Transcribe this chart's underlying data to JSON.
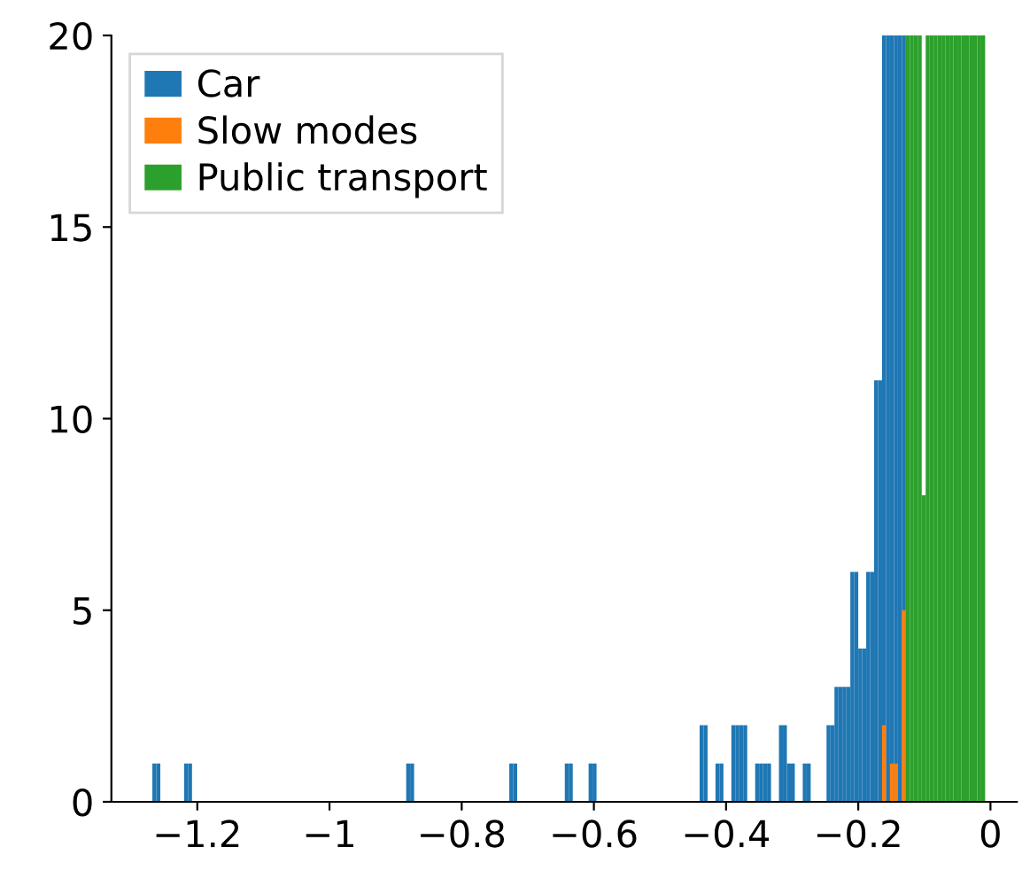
{
  "chart_data": {
    "type": "histogram",
    "legend": "top left",
    "grid": false,
    "xlim": [
      -1.33,
      0.04
    ],
    "ylim": [
      0,
      20
    ],
    "xticks": [
      {
        "value": -1.2,
        "label": "−1.2"
      },
      {
        "value": -1,
        "label": "−1"
      },
      {
        "value": -0.8,
        "label": "−0.8"
      },
      {
        "value": -0.6,
        "label": "−0.6"
      },
      {
        "value": -0.4,
        "label": "−0.4"
      },
      {
        "value": -0.2,
        "label": "−0.2"
      },
      0
    ],
    "yticks": [
      0,
      5,
      10,
      15,
      20
    ],
    "bins": [
      -1.268,
      -1.262,
      -1.256,
      -1.25,
      -1.244,
      -1.238,
      -1.232,
      -1.226,
      -1.22,
      -1.214,
      -1.208,
      -1.202,
      -1.196,
      -1.19,
      -1.184,
      -1.178,
      -1.172,
      -1.166,
      -1.16,
      -1.154,
      -1.148,
      -1.142,
      -1.136,
      -1.13,
      -1.124,
      -1.118,
      -1.112,
      -1.106,
      -1.1,
      -1.094,
      -1.088,
      -1.082,
      -1.076,
      -1.07,
      -1.064,
      -1.058,
      -1.052,
      -1.046,
      -1.04,
      -1.034,
      -1.028,
      -1.022,
      -1.016,
      -1.01,
      -1.004,
      -0.998,
      -0.992,
      -0.986,
      -0.98,
      -0.974,
      -0.968,
      -0.962,
      -0.956,
      -0.95,
      -0.944,
      -0.938,
      -0.932,
      -0.926,
      -0.92,
      -0.914,
      -0.908,
      -0.902,
      -0.896,
      -0.89,
      -0.884,
      -0.878,
      -0.872,
      -0.866,
      -0.86,
      -0.854,
      -0.848,
      -0.842,
      -0.836,
      -0.83,
      -0.824,
      -0.818,
      -0.812,
      -0.806,
      -0.8,
      -0.794,
      -0.788,
      -0.782,
      -0.776,
      -0.77,
      -0.764,
      -0.758,
      -0.752,
      -0.746,
      -0.74,
      -0.734,
      -0.728,
      -0.722,
      -0.716,
      -0.71,
      -0.704,
      -0.698,
      -0.692,
      -0.686,
      -0.68,
      -0.674,
      -0.668,
      -0.662,
      -0.656,
      -0.65,
      -0.644,
      -0.638,
      -0.632,
      -0.626,
      -0.62,
      -0.614,
      -0.608,
      -0.602,
      -0.596,
      -0.59,
      -0.584,
      -0.578,
      -0.572,
      -0.566,
      -0.56,
      -0.554,
      -0.548,
      -0.542,
      -0.536,
      -0.53,
      -0.524,
      -0.518,
      -0.512,
      -0.506,
      -0.5,
      -0.494,
      -0.488,
      -0.482,
      -0.476,
      -0.47,
      -0.464,
      -0.458,
      -0.452,
      -0.446,
      -0.44,
      -0.434,
      -0.428,
      -0.422,
      -0.416,
      -0.41,
      -0.404,
      -0.398,
      -0.392,
      -0.386,
      -0.38,
      -0.374,
      -0.368,
      -0.362,
      -0.356,
      -0.35,
      -0.344,
      -0.338,
      -0.332,
      -0.326,
      -0.32,
      -0.314,
      -0.308,
      -0.302,
      -0.296,
      -0.29,
      -0.284,
      -0.278,
      -0.272,
      -0.266,
      -0.26,
      -0.254,
      -0.248,
      -0.242,
      -0.236,
      -0.23,
      -0.224,
      -0.218,
      -0.212,
      -0.206,
      -0.2,
      -0.194,
      -0.188,
      -0.182,
      -0.176,
      -0.17,
      -0.164,
      -0.158,
      -0.152,
      -0.146,
      -0.14,
      -0.134,
      -0.128,
      -0.122,
      -0.116,
      -0.11,
      -0.104,
      -0.098,
      -0.092,
      -0.086,
      -0.08,
      -0.074,
      -0.068,
      -0.062,
      -0.056,
      -0.05,
      -0.044,
      -0.038,
      -0.032,
      -0.026,
      -0.02,
      -0.014,
      -0.008,
      -0.002
    ],
    "series": [
      {
        "name": "Car",
        "color": "#1f77b4",
        "values": [
          1,
          1,
          0,
          0,
          0,
          0,
          0,
          0,
          1,
          1,
          0,
          0,
          0,
          0,
          0,
          0,
          0,
          0,
          0,
          0,
          0,
          0,
          0,
          0,
          0,
          0,
          0,
          0,
          0,
          0,
          0,
          0,
          0,
          0,
          0,
          0,
          0,
          0,
          0,
          0,
          0,
          0,
          0,
          0,
          0,
          0,
          0,
          0,
          0,
          0,
          0,
          0,
          0,
          0,
          0,
          0,
          0,
          0,
          0,
          0,
          0,
          0,
          0,
          0,
          1,
          1,
          0,
          0,
          0,
          0,
          0,
          0,
          0,
          0,
          0,
          0,
          0,
          0,
          0,
          0,
          0,
          0,
          0,
          0,
          0,
          0,
          0,
          0,
          0,
          0,
          1,
          1,
          0,
          0,
          0,
          0,
          0,
          0,
          0,
          0,
          0,
          0,
          0,
          0,
          1,
          1,
          0,
          0,
          0,
          0,
          1,
          1,
          0,
          0,
          0,
          0,
          0,
          0,
          0,
          0,
          0,
          0,
          0,
          0,
          0,
          0,
          0,
          0,
          0,
          0,
          0,
          0,
          0,
          0,
          0,
          0,
          0,
          0,
          2,
          2,
          0,
          0,
          1,
          1,
          0,
          0,
          2,
          2,
          2,
          2,
          0,
          0,
          1,
          1,
          1,
          1,
          0,
          0,
          2,
          2,
          1,
          1,
          0,
          0,
          1,
          1,
          0,
          0,
          0,
          0,
          2,
          2,
          3,
          3,
          3,
          3,
          6,
          6,
          4,
          4,
          6,
          6,
          11,
          11,
          20,
          20,
          20,
          20,
          20,
          20,
          0,
          0,
          0,
          0,
          0,
          0,
          0,
          0,
          0,
          0,
          0,
          0,
          0,
          0,
          0,
          0,
          0,
          0,
          0,
          0,
          0
        ]
      },
      {
        "name": "Slow modes",
        "color": "#ff7f0e",
        "values": [
          0,
          0,
          0,
          0,
          0,
          0,
          0,
          0,
          0,
          0,
          0,
          0,
          0,
          0,
          0,
          0,
          0,
          0,
          0,
          0,
          0,
          0,
          0,
          0,
          0,
          0,
          0,
          0,
          0,
          0,
          0,
          0,
          0,
          0,
          0,
          0,
          0,
          0,
          0,
          0,
          0,
          0,
          0,
          0,
          0,
          0,
          0,
          0,
          0,
          0,
          0,
          0,
          0,
          0,
          0,
          0,
          0,
          0,
          0,
          0,
          0,
          0,
          0,
          0,
          0,
          0,
          0,
          0,
          0,
          0,
          0,
          0,
          0,
          0,
          0,
          0,
          0,
          0,
          0,
          0,
          0,
          0,
          0,
          0,
          0,
          0,
          0,
          0,
          0,
          0,
          0,
          0,
          0,
          0,
          0,
          0,
          0,
          0,
          0,
          0,
          0,
          0,
          0,
          0,
          0,
          0,
          0,
          0,
          0,
          0,
          0,
          0,
          0,
          0,
          0,
          0,
          0,
          0,
          0,
          0,
          0,
          0,
          0,
          0,
          0,
          0,
          0,
          0,
          0,
          0,
          0,
          0,
          0,
          0,
          0,
          0,
          0,
          0,
          0,
          0,
          0,
          0,
          0,
          0,
          0,
          0,
          0,
          0,
          0,
          0,
          0,
          0,
          0,
          0,
          0,
          0,
          0,
          0,
          0,
          0,
          0,
          0,
          0,
          0,
          0,
          0,
          0,
          0,
          0,
          0,
          0,
          0,
          0,
          0,
          0,
          0,
          0,
          0,
          0,
          0,
          0,
          0,
          0,
          0,
          2,
          0,
          1,
          1,
          0,
          5,
          0,
          0,
          0,
          0,
          0,
          0,
          0,
          0,
          0,
          0,
          0,
          0,
          0,
          0,
          0,
          0,
          0,
          0,
          0,
          0,
          0
        ]
      },
      {
        "name": "Public transport",
        "color": "#2ca02c",
        "values": [
          0,
          0,
          0,
          0,
          0,
          0,
          0,
          0,
          0,
          0,
          0,
          0,
          0,
          0,
          0,
          0,
          0,
          0,
          0,
          0,
          0,
          0,
          0,
          0,
          0,
          0,
          0,
          0,
          0,
          0,
          0,
          0,
          0,
          0,
          0,
          0,
          0,
          0,
          0,
          0,
          0,
          0,
          0,
          0,
          0,
          0,
          0,
          0,
          0,
          0,
          0,
          0,
          0,
          0,
          0,
          0,
          0,
          0,
          0,
          0,
          0,
          0,
          0,
          0,
          0,
          0,
          0,
          0,
          0,
          0,
          0,
          0,
          0,
          0,
          0,
          0,
          0,
          0,
          0,
          0,
          0,
          0,
          0,
          0,
          0,
          0,
          0,
          0,
          0,
          0,
          0,
          0,
          0,
          0,
          0,
          0,
          0,
          0,
          0,
          0,
          0,
          0,
          0,
          0,
          0,
          0,
          0,
          0,
          0,
          0,
          0,
          0,
          0,
          0,
          0,
          0,
          0,
          0,
          0,
          0,
          0,
          0,
          0,
          0,
          0,
          0,
          0,
          0,
          0,
          0,
          0,
          0,
          0,
          0,
          0,
          0,
          0,
          0,
          0,
          0,
          0,
          0,
          0,
          0,
          0,
          0,
          0,
          0,
          0,
          0,
          0,
          0,
          0,
          0,
          0,
          0,
          0,
          0,
          0,
          0,
          0,
          0,
          0,
          0,
          0,
          0,
          0,
          0,
          0,
          0,
          0,
          0,
          0,
          0,
          0,
          0,
          0,
          0,
          0,
          0,
          0,
          0,
          0,
          0,
          0,
          0,
          0,
          0,
          0,
          0,
          20,
          20,
          20,
          20,
          8,
          20,
          20,
          20,
          20,
          20,
          20,
          20,
          20,
          20,
          20,
          20,
          20,
          20,
          20,
          20,
          0
        ]
      }
    ]
  }
}
